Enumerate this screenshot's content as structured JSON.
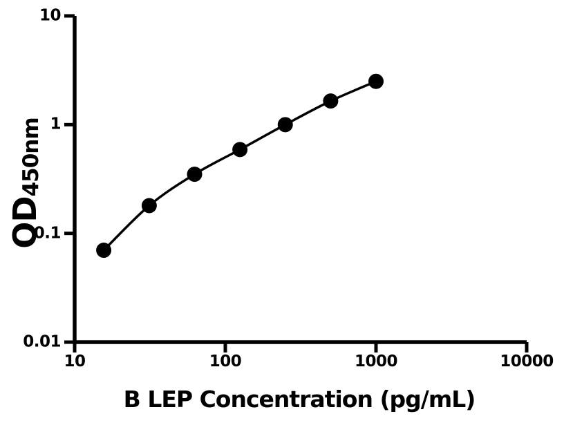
{
  "figure": {
    "background_color": "#ffffff",
    "ink_color": "#000000"
  },
  "chart_data": {
    "type": "scatter",
    "title": "",
    "xlabel": "B LEP Concentration (pg/mL)",
    "ylabel": "OD",
    "ylabel_subscript": "450nm",
    "x_scale": "log",
    "y_scale": "log",
    "xlim": [
      10,
      10000
    ],
    "ylim": [
      0.01,
      10
    ],
    "x_ticks": [
      10,
      100,
      1000,
      10000
    ],
    "x_tick_labels": [
      "10",
      "100",
      "1000",
      "10000"
    ],
    "y_ticks": [
      0.01,
      0.1,
      1,
      10
    ],
    "y_tick_labels": [
      "0.01",
      "0.1",
      "1",
      "10"
    ],
    "grid": false,
    "legend": null,
    "series": [
      {
        "marker": "circle",
        "marker_color": "#000000",
        "line_color": "#000000",
        "x": [
          15.6,
          31.25,
          62.5,
          125,
          250,
          500,
          1000
        ],
        "y": [
          0.07,
          0.18,
          0.35,
          0.59,
          1.0,
          1.65,
          2.5
        ]
      }
    ]
  }
}
